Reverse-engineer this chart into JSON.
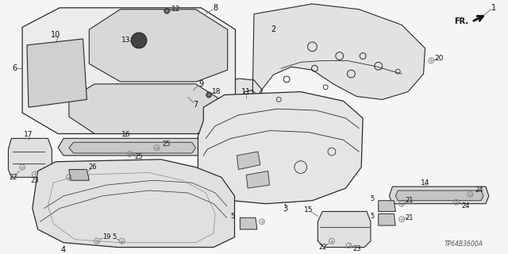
{
  "background_color": "#f5f5f5",
  "diagram_code": "TP64B3600A",
  "direction_label": "FR.",
  "line_color": "#2a2a2a",
  "text_color": "#111111",
  "fig_width": 6.4,
  "fig_height": 3.2,
  "dpi": 100,
  "gray_fill": "#d8d8d8",
  "light_gray": "#e8e8e8"
}
